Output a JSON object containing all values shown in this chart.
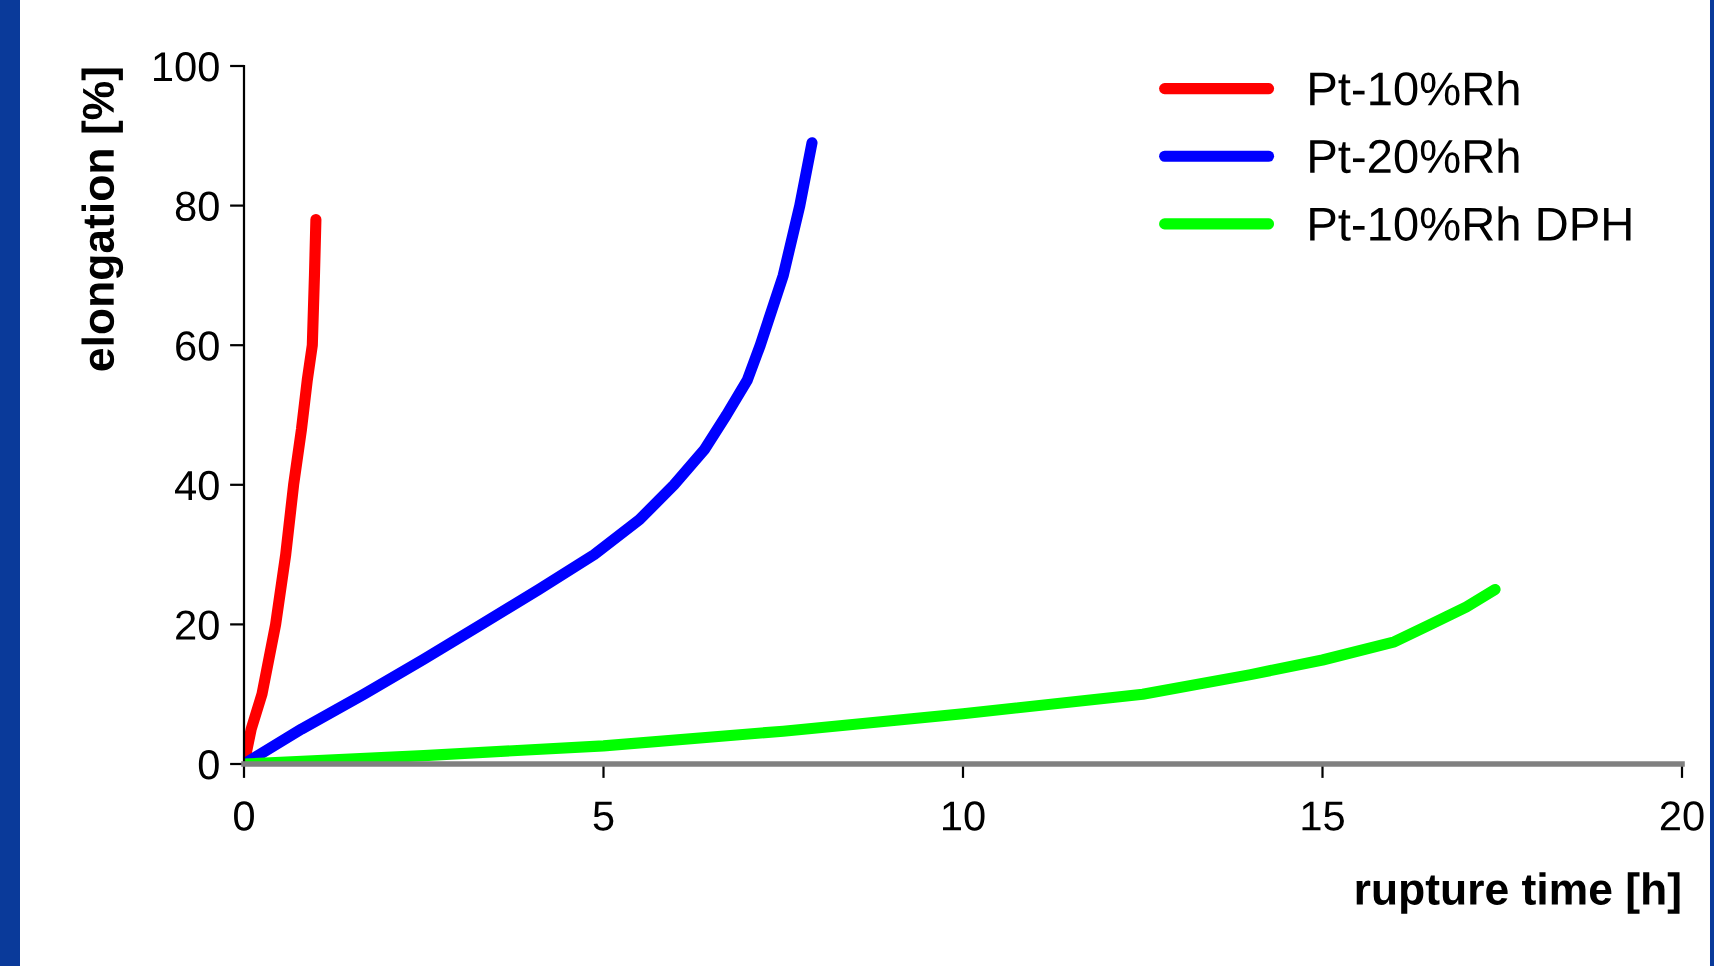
{
  "chart_data": {
    "type": "line",
    "xlabel": "rupture time [h]",
    "ylabel": "elongation [%]",
    "xlim": [
      0,
      20
    ],
    "xticks": [
      0,
      5,
      10,
      15,
      20
    ],
    "ylim": [
      0,
      100
    ],
    "yticks": [
      0,
      20,
      40,
      60,
      80,
      100
    ],
    "grid": false,
    "legend": "top right",
    "marker": "none",
    "line_style": "solid",
    "series": [
      {
        "name": "Pt-10%Rh",
        "color": "#ff0000",
        "x": [
          0,
          0.1,
          0.25,
          0.44,
          0.58,
          0.69,
          0.8,
          0.88,
          0.95,
          0.98,
          1.0
        ],
        "values": [
          0,
          5,
          10,
          20,
          30,
          40,
          48,
          55,
          60,
          70,
          78
        ]
      },
      {
        "name": "Pt-20%Rh",
        "color": "#0000ff",
        "x": [
          0,
          0.8,
          1.67,
          2.5,
          3.3,
          4.1,
          4.87,
          5.5,
          5.98,
          6.4,
          6.71,
          7.0,
          7.18,
          7.5,
          7.73,
          7.9
        ],
        "values": [
          0,
          5,
          10,
          15,
          20,
          25,
          30,
          35,
          40,
          45,
          50,
          55,
          60,
          70,
          80,
          89
        ]
      },
      {
        "name": "Pt-10%Rh DPH",
        "color": "#00ff00",
        "x": [
          0,
          2.5,
          5,
          7.5,
          10,
          12.5,
          14,
          15,
          16,
          16.5,
          17,
          17.4
        ],
        "values": [
          0,
          1.2,
          2.6,
          4.7,
          7.2,
          10,
          12.8,
          14.9,
          17.5,
          20,
          22.5,
          25
        ]
      }
    ]
  }
}
